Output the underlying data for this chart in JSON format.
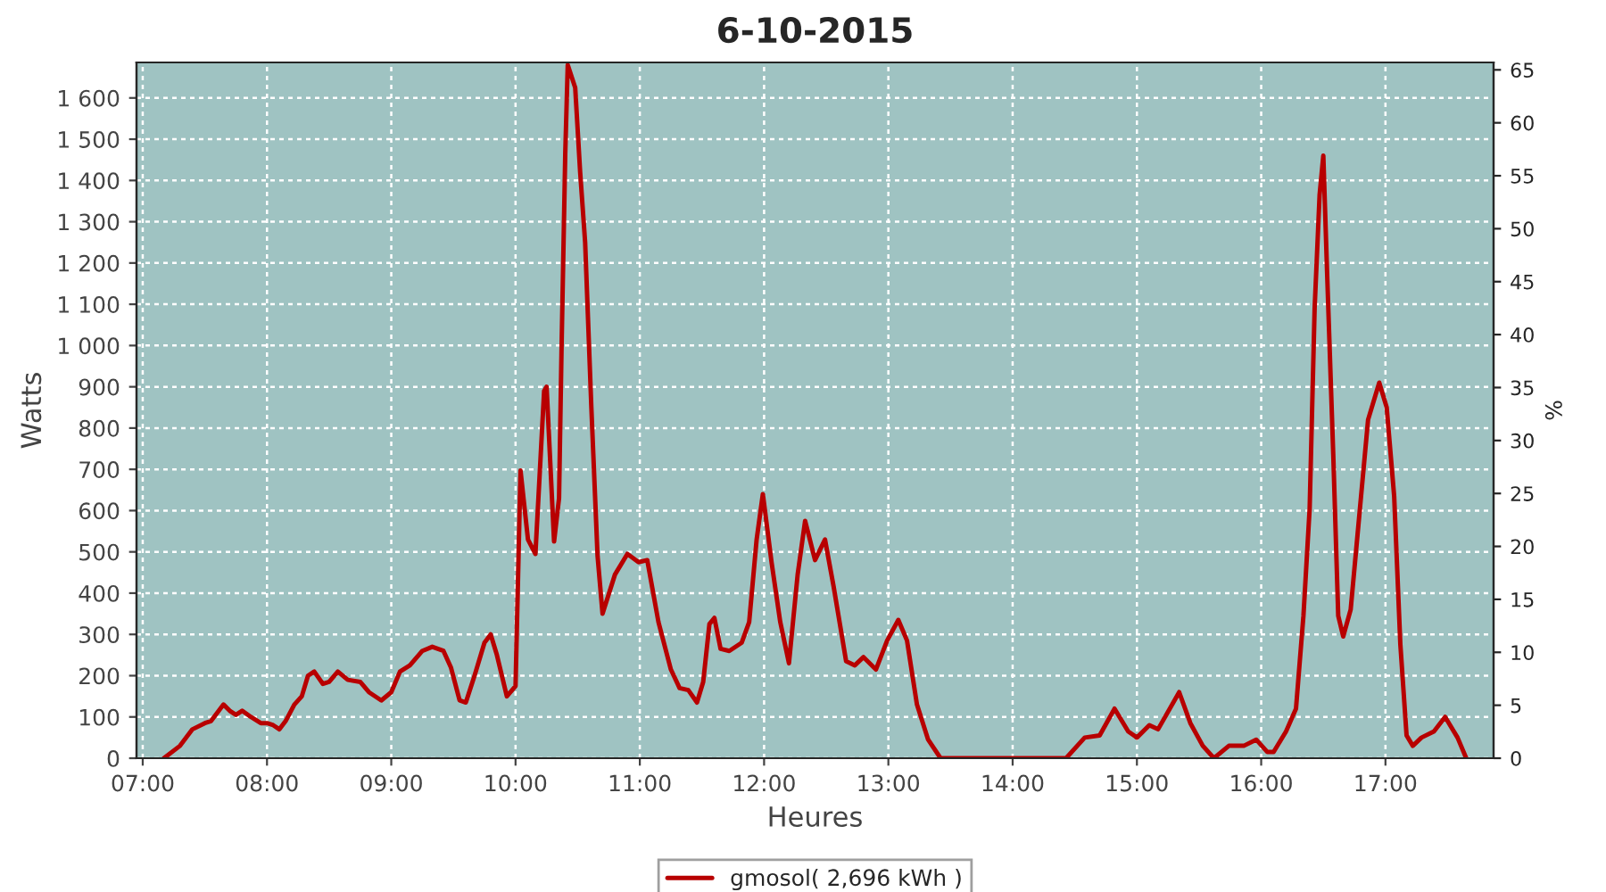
{
  "chart_data": {
    "type": "line",
    "title": "6-10-2015",
    "xlabel": "Heures",
    "ylabel": "Watts",
    "y2label": "%",
    "x": [
      7.17,
      7.3,
      7.4,
      7.5,
      7.55,
      7.6,
      7.65,
      7.7,
      7.75,
      7.8,
      7.87,
      7.95,
      8.0,
      8.05,
      8.1,
      8.15,
      8.22,
      8.28,
      8.33,
      8.38,
      8.45,
      8.5,
      8.57,
      8.65,
      8.75,
      8.82,
      8.92,
      9.0,
      9.07,
      9.15,
      9.25,
      9.33,
      9.42,
      9.48,
      9.55,
      9.6,
      9.67,
      9.75,
      9.8,
      9.85,
      9.93,
      10.0,
      10.04,
      10.1,
      10.16,
      10.23,
      10.25,
      10.31,
      10.35,
      10.37,
      10.4,
      10.42,
      10.48,
      10.52,
      10.56,
      10.61,
      10.66,
      10.7,
      10.8,
      10.9,
      10.99,
      11.06,
      11.15,
      11.25,
      11.32,
      11.39,
      11.46,
      11.51,
      11.56,
      11.6,
      11.65,
      11.72,
      11.82,
      11.88,
      11.94,
      11.99,
      12.06,
      12.13,
      12.2,
      12.27,
      12.33,
      12.41,
      12.49,
      12.56,
      12.66,
      12.73,
      12.8,
      12.9,
      12.99,
      13.08,
      13.15,
      13.23,
      13.32,
      13.42,
      14.0,
      14.43,
      14.58,
      14.7,
      14.82,
      14.93,
      15.0,
      15.1,
      15.17,
      15.34,
      15.43,
      15.53,
      15.62,
      15.74,
      15.86,
      15.96,
      16.05,
      16.1,
      16.2,
      16.28,
      16.34,
      16.39,
      16.43,
      16.47,
      16.5,
      16.53,
      16.58,
      16.62,
      16.66,
      16.72,
      16.79,
      16.86,
      16.95,
      17.01,
      17.07,
      17.12,
      17.17,
      17.22,
      17.29,
      17.39,
      17.48,
      17.58,
      17.65
    ],
    "series": [
      {
        "name": "gmosol( 2,696 kWh )",
        "color": "#b80000",
        "values": [
          0,
          30,
          70,
          85,
          90,
          110,
          130,
          115,
          105,
          115,
          100,
          85,
          85,
          80,
          70,
          90,
          130,
          150,
          200,
          210,
          180,
          185,
          210,
          190,
          185,
          160,
          140,
          160,
          210,
          225,
          260,
          270,
          260,
          220,
          140,
          135,
          200,
          280,
          300,
          250,
          150,
          175,
          697,
          530,
          495,
          890,
          900,
          525,
          630,
          990,
          1465,
          1680,
          1625,
          1420,
          1250,
          850,
          490,
          350,
          445,
          495,
          475,
          480,
          330,
          215,
          170,
          165,
          135,
          185,
          325,
          340,
          265,
          260,
          280,
          330,
          530,
          640,
          475,
          330,
          230,
          445,
          575,
          480,
          530,
          415,
          235,
          225,
          245,
          215,
          285,
          335,
          285,
          130,
          45,
          0,
          0,
          0,
          50,
          55,
          120,
          65,
          50,
          80,
          70,
          160,
          85,
          30,
          0,
          30,
          30,
          45,
          15,
          15,
          65,
          120,
          345,
          605,
          1090,
          1365,
          1460,
          1180,
          735,
          345,
          295,
          360,
          590,
          820,
          910,
          850,
          635,
          275,
          55,
          30,
          50,
          65,
          100,
          50,
          0
        ]
      }
    ],
    "xlim": [
      6.95,
      17.87
    ],
    "xticks": [
      {
        "value": 7,
        "label": "07:00"
      },
      {
        "value": 8,
        "label": "08:00"
      },
      {
        "value": 9,
        "label": "09:00"
      },
      {
        "value": 10,
        "label": "10:00"
      },
      {
        "value": 11,
        "label": "11:00"
      },
      {
        "value": 12,
        "label": "12:00"
      },
      {
        "value": 13,
        "label": "13:00"
      },
      {
        "value": 14,
        "label": "14:00"
      },
      {
        "value": 15,
        "label": "15:00"
      },
      {
        "value": 16,
        "label": "16:00"
      },
      {
        "value": 17,
        "label": "17:00"
      }
    ],
    "ylim": [
      0,
      1686
    ],
    "yticks": [
      0,
      100,
      200,
      300,
      400,
      500,
      600,
      700,
      800,
      900,
      {
        "value": 1000,
        "label": "1 000"
      },
      {
        "value": 1100,
        "label": "1 100"
      },
      {
        "value": 1200,
        "label": "1 200"
      },
      {
        "value": 1300,
        "label": "1 300"
      },
      {
        "value": 1400,
        "label": "1 400"
      },
      {
        "value": 1500,
        "label": "1 500"
      },
      {
        "value": 1600,
        "label": "1 600"
      }
    ],
    "y2lim": [
      0,
      65.7
    ],
    "y2ticks": [
      0,
      5,
      10,
      15,
      20,
      25,
      30,
      35,
      40,
      45,
      50,
      55,
      60,
      65
    ],
    "grid": true,
    "legend": "bottom",
    "marker": "none",
    "line_style": "solid"
  }
}
